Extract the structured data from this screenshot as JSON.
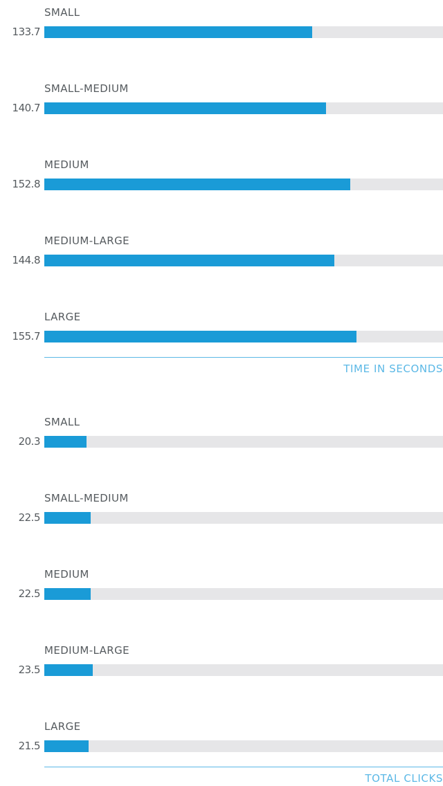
{
  "colors": {
    "bar_fill": "#1a9bd7",
    "bar_track": "#e6e6e8",
    "axis_accent": "#5bb8e6",
    "label_text": "#555a5e"
  },
  "chart_data": [
    {
      "type": "bar",
      "orientation": "horizontal",
      "xlabel": "TIME IN SECONDS",
      "categories": [
        "SMALL",
        "SMALL-MEDIUM",
        "MEDIUM",
        "MEDIUM-LARGE",
        "LARGE"
      ],
      "values": [
        133.7,
        140.7,
        152.8,
        144.8,
        155.7
      ],
      "value_labels": [
        "133.7",
        "140.7",
        "152.8",
        "144.8",
        "155.7"
      ],
      "xlim": [
        0,
        199
      ],
      "grid": false
    },
    {
      "type": "bar",
      "orientation": "horizontal",
      "xlabel": "TOTAL CLICKS",
      "categories": [
        "SMALL",
        "SMALL-MEDIUM",
        "MEDIUM",
        "MEDIUM-LARGE",
        "LARGE"
      ],
      "values": [
        20.3,
        22.5,
        22.5,
        23.5,
        21.5
      ],
      "value_labels": [
        "20.3",
        "22.5",
        "22.5",
        "23.5",
        "21.5"
      ],
      "xlim": [
        0,
        193
      ],
      "grid": false
    }
  ]
}
